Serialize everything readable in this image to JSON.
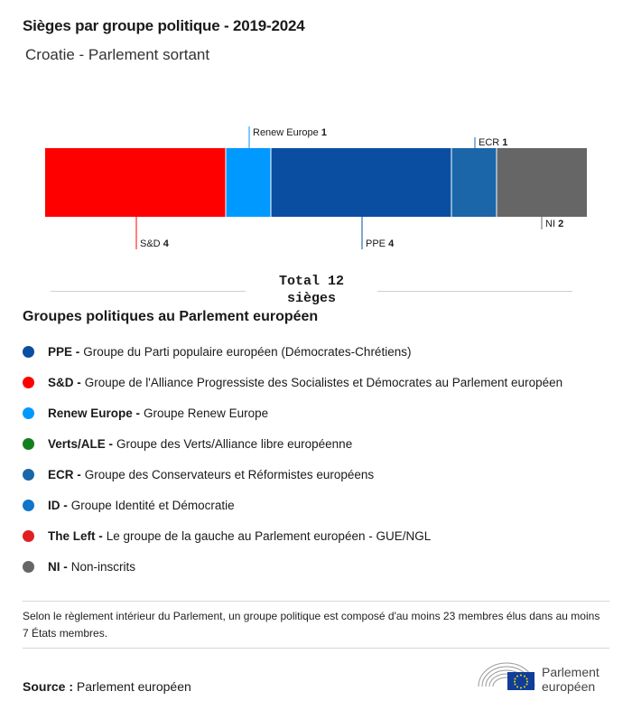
{
  "header": {
    "title": "Sièges par groupe politique - 2019-2024",
    "subtitle": "Croatie - Parlement sortant"
  },
  "chart_data": {
    "type": "bar",
    "stacked": true,
    "orientation": "horizontal",
    "categories": [
      "S&D",
      "Renew Europe",
      "PPE",
      "ECR",
      "NI"
    ],
    "values": [
      4,
      1,
      4,
      1,
      2
    ],
    "colors": [
      "#ff0000",
      "#0099ff",
      "#0a4ea1",
      "#1a66a8",
      "#666666"
    ],
    "label_side": [
      "bottom",
      "top",
      "bottom",
      "top",
      "bottom"
    ],
    "total_value": 12
  },
  "total": {
    "line1": "Total 12",
    "line2": "sièges"
  },
  "legend": {
    "title": "Groupes politiques au Parlement européen",
    "items": [
      {
        "abbr": "PPE -",
        "name": "Groupe du Parti populaire européen (Démocrates-Chrétiens)",
        "color": "#0a4ea1"
      },
      {
        "abbr": "S&D -",
        "name": "Groupe de l'Alliance Progressiste des Socialistes et Démocrates au Parlement européen",
        "color": "#ff0000"
      },
      {
        "abbr": "Renew Europe -",
        "name": "Groupe Renew Europe",
        "color": "#0099ff"
      },
      {
        "abbr": "Verts/ALE -",
        "name": "Groupe des Verts/Alliance libre européenne",
        "color": "#127f1d"
      },
      {
        "abbr": "ECR -",
        "name": "Groupe des Conservateurs et Réformistes européens",
        "color": "#1a66a8"
      },
      {
        "abbr": "ID -",
        "name": "Groupe Identité et Démocratie",
        "color": "#1175c9"
      },
      {
        "abbr": "The Left -",
        "name": "Le groupe de la gauche au Parlement européen - GUE/NGL",
        "color": "#e02121"
      },
      {
        "abbr": "NI -",
        "name": "Non-inscrits",
        "color": "#666666"
      }
    ]
  },
  "footer": {
    "note": "Selon le règlement intérieur du Parlement, un groupe politique est composé d'au moins 23 membres élus dans au moins 7 États membres.",
    "source_label": "Source :",
    "source_value": "Parlement européen",
    "logo_line1": "Parlement",
    "logo_line2": "européen"
  }
}
